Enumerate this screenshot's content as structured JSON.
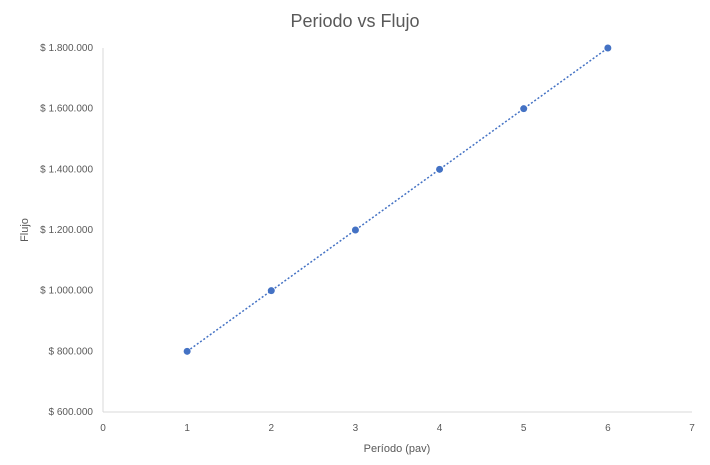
{
  "chart_data": {
    "type": "scatter",
    "title": "Periodo vs Flujo",
    "xlabel": "Período (pav)",
    "ylabel": "Flujo",
    "xlim": [
      0,
      7
    ],
    "ylim": [
      600000,
      1800000
    ],
    "x_ticks": [
      "0",
      "1",
      "2",
      "3",
      "4",
      "5",
      "6",
      "7"
    ],
    "y_ticks": [
      "$ 600.000",
      "$ 800.000",
      "$ 1.000.000",
      "$ 1.200.000",
      "$ 1.400.000",
      "$ 1.600.000",
      "$ 1.800.000"
    ],
    "x_tick_values": [
      0,
      1,
      2,
      3,
      4,
      5,
      6,
      7
    ],
    "y_tick_values": [
      600000,
      800000,
      1000000,
      1200000,
      1400000,
      1600000,
      1800000
    ],
    "grid": false,
    "trendline": "linear, dotted",
    "series": [
      {
        "x": [
          1,
          2,
          3,
          4,
          5,
          6
        ],
        "y": [
          800000,
          1000000,
          1200000,
          1400000,
          1600000,
          1800000
        ]
      }
    ],
    "colors": {
      "series": "#4472c4",
      "axis": "#d9d9d9",
      "text": "#595959"
    }
  }
}
